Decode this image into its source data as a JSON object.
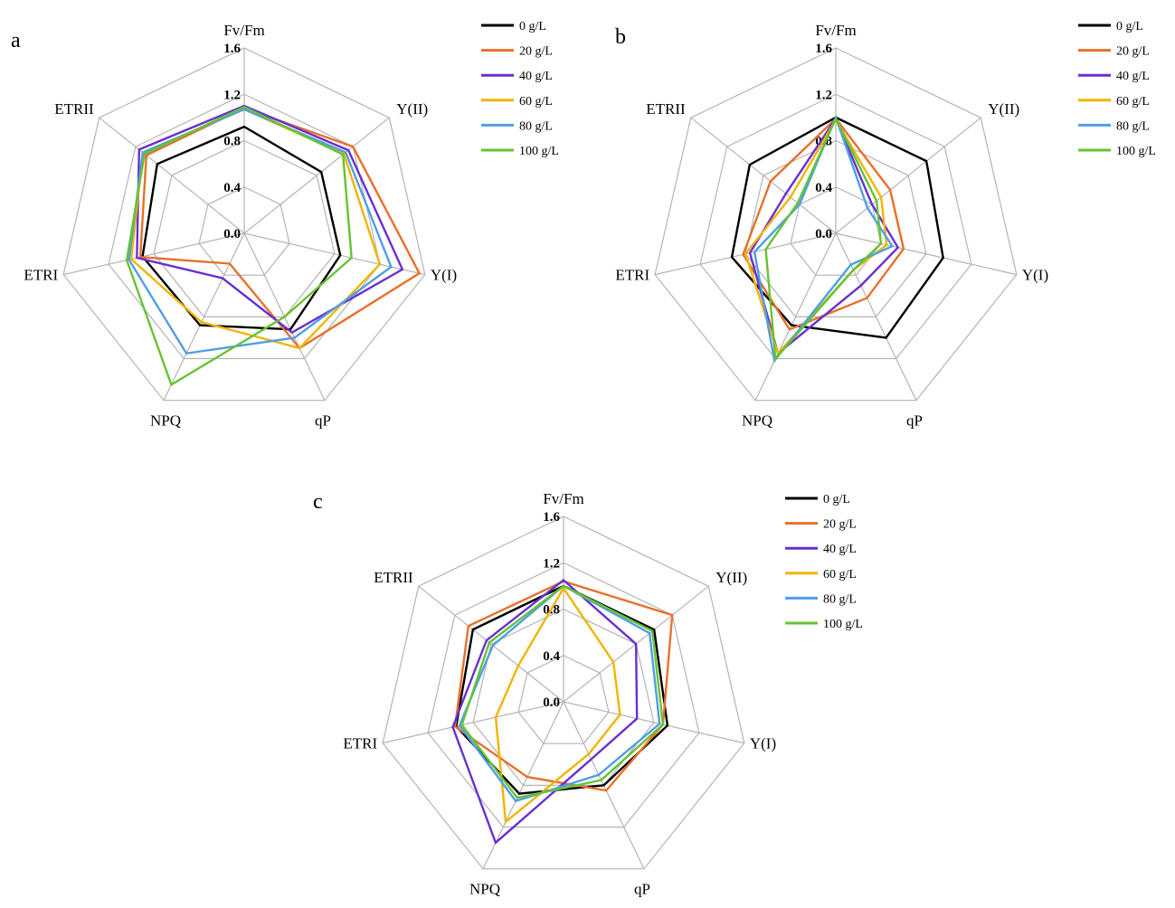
{
  "chart_data": [
    {
      "panel": "a",
      "type": "radar",
      "axes": [
        "Fv/Fm",
        "Y(II)",
        "Y(I)",
        "qP",
        "NPQ",
        "ETRI",
        "ETRII"
      ],
      "ticks": [
        "0.0",
        "0.4",
        "0.8",
        "1.2",
        "1.6"
      ],
      "range": [
        0,
        1.6
      ],
      "legend_position": "right",
      "series": [
        {
          "name": "0 g/L",
          "color": "#000000",
          "values": [
            0.92,
            0.85,
            0.85,
            0.92,
            0.88,
            0.9,
            0.96
          ]
        },
        {
          "name": "20 g/L",
          "color": "#e8702a",
          "values": [
            1.08,
            1.2,
            1.55,
            1.1,
            0.29,
            0.92,
            1.08
          ]
        },
        {
          "name": "40 g/L",
          "color": "#6a2fcf",
          "values": [
            1.1,
            1.15,
            1.4,
            0.95,
            0.43,
            0.95,
            1.16
          ]
        },
        {
          "name": "60 g/L",
          "color": "#f2b400",
          "values": [
            1.07,
            1.1,
            1.2,
            1.1,
            0.85,
            1.0,
            1.12
          ]
        },
        {
          "name": "80 g/L",
          "color": "#4f9ee3",
          "values": [
            1.07,
            1.12,
            1.3,
            1.0,
            1.15,
            1.02,
            1.12
          ]
        },
        {
          "name": "100 g/L",
          "color": "#65c334",
          "values": [
            1.09,
            1.09,
            0.95,
            0.8,
            1.45,
            1.04,
            1.1
          ]
        }
      ]
    },
    {
      "panel": "b",
      "type": "radar",
      "axes": [
        "Fv/Fm",
        "Y(II)",
        "Y(I)",
        "qP",
        "NPQ",
        "ETRI",
        "ETRII"
      ],
      "ticks": [
        "0.0",
        "0.4",
        "0.8",
        "1.2",
        "1.6"
      ],
      "range": [
        0,
        1.6
      ],
      "legend_position": "right",
      "series": [
        {
          "name": "0 g/L",
          "color": "#000000",
          "values": [
            1.0,
            1.0,
            0.95,
            1.0,
            0.88,
            0.92,
            0.95
          ]
        },
        {
          "name": "20 g/L",
          "color": "#e8702a",
          "values": [
            0.99,
            0.6,
            0.6,
            0.62,
            0.92,
            0.82,
            0.72
          ]
        },
        {
          "name": "40 g/L",
          "color": "#6a2fcf",
          "values": [
            0.99,
            0.4,
            0.55,
            0.5,
            1.15,
            0.76,
            0.55
          ]
        },
        {
          "name": "60 g/L",
          "color": "#f2b400",
          "values": [
            0.98,
            0.5,
            0.45,
            0.35,
            1.15,
            0.8,
            0.5
          ]
        },
        {
          "name": "80 g/L",
          "color": "#4f9ee3",
          "values": [
            1.0,
            0.35,
            0.5,
            0.3,
            1.22,
            0.72,
            0.4
          ]
        },
        {
          "name": "100 g/L",
          "color": "#65c334",
          "values": [
            0.99,
            0.45,
            0.4,
            0.35,
            1.2,
            0.62,
            0.42
          ]
        }
      ]
    },
    {
      "panel": "c",
      "type": "radar",
      "axes": [
        "Fv/Fm",
        "Y(II)",
        "Y(I)",
        "qP",
        "NPQ",
        "ETRI",
        "ETRII"
      ],
      "ticks": [
        "0.0",
        "0.4",
        "0.8",
        "1.2",
        "1.6"
      ],
      "range": [
        0,
        1.6
      ],
      "legend_position": "right",
      "series": [
        {
          "name": "0 g/L",
          "color": "#000000",
          "values": [
            1.0,
            1.0,
            0.92,
            0.8,
            0.88,
            0.95,
            1.0
          ]
        },
        {
          "name": "20 g/L",
          "color": "#e8702a",
          "values": [
            1.04,
            1.2,
            0.88,
            0.85,
            0.72,
            0.96,
            1.05
          ]
        },
        {
          "name": "40 g/L",
          "color": "#6a2fcf",
          "values": [
            1.05,
            0.8,
            0.65,
            0.55,
            1.35,
            0.98,
            0.85
          ]
        },
        {
          "name": "60 g/L",
          "color": "#f2b400",
          "values": [
            0.98,
            0.55,
            0.5,
            0.5,
            1.15,
            0.6,
            0.5
          ]
        },
        {
          "name": "80 g/L",
          "color": "#4f9ee3",
          "values": [
            1.0,
            0.95,
            0.85,
            0.7,
            0.95,
            0.92,
            0.78
          ]
        },
        {
          "name": "100 g/L",
          "color": "#65c334",
          "values": [
            1.0,
            0.98,
            0.88,
            0.75,
            0.92,
            0.9,
            0.82
          ]
        }
      ]
    }
  ]
}
